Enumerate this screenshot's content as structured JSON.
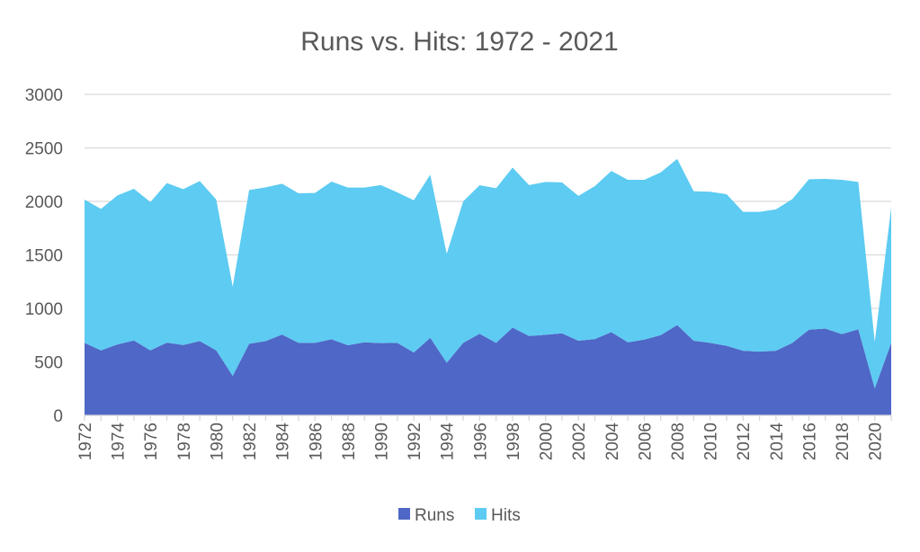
{
  "chart_data": {
    "type": "area",
    "stacked": true,
    "title": "Runs vs. Hits: 1972 - 2021",
    "xlabel": "",
    "ylabel": "",
    "ylim": [
      0,
      3000
    ],
    "yticks": [
      "0",
      "500",
      "1000",
      "1500",
      "2000",
      "2500",
      "3000"
    ],
    "grid": true,
    "legend_position": "bottom",
    "x": [
      1972,
      1973,
      1974,
      1975,
      1976,
      1977,
      1978,
      1979,
      1980,
      1981,
      1982,
      1983,
      1984,
      1985,
      1986,
      1987,
      1988,
      1989,
      1990,
      1991,
      1992,
      1993,
      1994,
      1995,
      1996,
      1997,
      1998,
      1999,
      2000,
      2001,
      2002,
      2003,
      2004,
      2005,
      2006,
      2007,
      2008,
      2009,
      2010,
      2011,
      2012,
      2013,
      2014,
      2015,
      2016,
      2017,
      2018,
      2019,
      2020,
      2021
    ],
    "xtick_labels": [
      "1972",
      "1974",
      "1976",
      "1978",
      "1980",
      "1982",
      "1984",
      "1986",
      "1988",
      "1990",
      "1992",
      "1994",
      "1996",
      "1998",
      "2000",
      "2002",
      "2004",
      "2006",
      "2008",
      "2010",
      "2012",
      "2014",
      "2016",
      "2018",
      "2020"
    ],
    "series": [
      {
        "name": "Runs",
        "color": "#4F67C6",
        "values": [
          677,
          607,
          663,
          700,
          607,
          680,
          658,
          694,
          607,
          369,
          669,
          694,
          755,
          677,
          677,
          711,
          655,
          683,
          675,
          678,
          587,
          725,
          492,
          678,
          763,
          677,
          820,
          742,
          753,
          767,
          697,
          713,
          778,
          683,
          708,
          750,
          845,
          697,
          677,
          650,
          604,
          596,
          604,
          678,
          800,
          811,
          759,
          805,
          252,
          678
        ]
      },
      {
        "name": "Hits",
        "color": "#5DCBF2",
        "values": [
          1340,
          1323,
          1393,
          1418,
          1387,
          1491,
          1456,
          1496,
          1410,
          834,
          1437,
          1437,
          1410,
          1399,
          1402,
          1474,
          1474,
          1446,
          1477,
          1406,
          1424,
          1524,
          1018,
          1322,
          1388,
          1446,
          1496,
          1410,
          1429,
          1410,
          1354,
          1430,
          1507,
          1519,
          1494,
          1521,
          1552,
          1398,
          1413,
          1417,
          1298,
          1306,
          1321,
          1344,
          1407,
          1399,
          1443,
          1377,
          434,
          1266
        ]
      }
    ]
  }
}
